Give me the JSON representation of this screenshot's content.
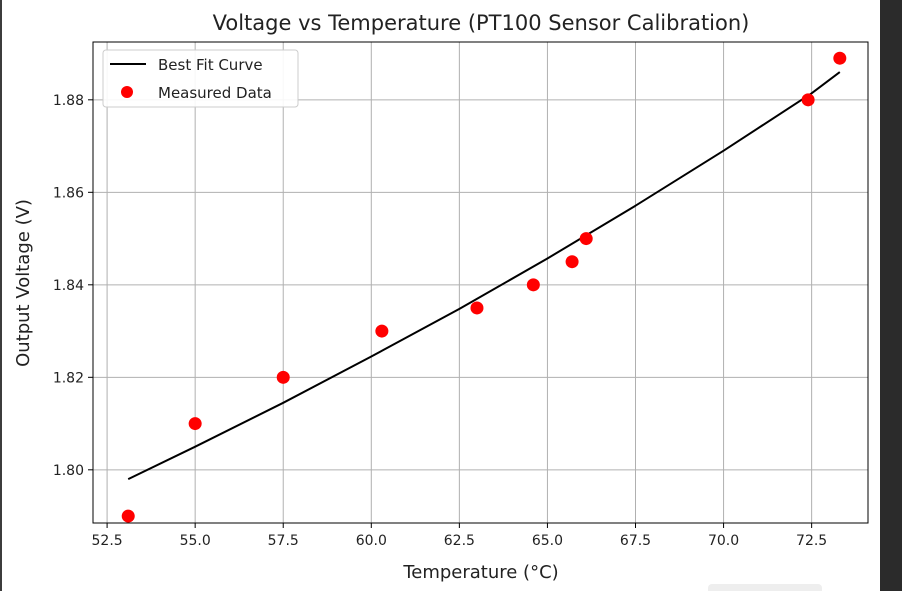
{
  "chart_data": {
    "type": "scatter",
    "title": "Voltage vs Temperature (PT100 Sensor Calibration)",
    "xlabel": "Temperature (°C)",
    "ylabel": "Output Voltage (V)",
    "xlim": [
      52.1,
      74.1
    ],
    "ylim": [
      1.7885,
      1.8925
    ],
    "xticks": [
      52.5,
      55.0,
      57.5,
      60.0,
      62.5,
      65.0,
      67.5,
      70.0,
      72.5
    ],
    "xtick_labels": [
      "52.5",
      "55.0",
      "57.5",
      "60.0",
      "62.5",
      "65.0",
      "67.5",
      "70.0",
      "72.5"
    ],
    "yticks": [
      1.8,
      1.82,
      1.84,
      1.86,
      1.88
    ],
    "ytick_labels": [
      "1.80",
      "1.82",
      "1.84",
      "1.86",
      "1.88"
    ],
    "grid": true,
    "legend_position": "top-left",
    "series": [
      {
        "name": "Best Fit Curve",
        "kind": "line",
        "color": "#000000",
        "x": [
          53.1,
          55.0,
          57.5,
          60.0,
          62.5,
          65.0,
          67.5,
          70.0,
          72.5,
          73.3
        ],
        "y": [
          1.798,
          1.805,
          1.8145,
          1.8245,
          1.8348,
          1.8457,
          1.8571,
          1.869,
          1.8814,
          1.886
        ]
      },
      {
        "name": "Measured Data",
        "kind": "scatter",
        "color": "#ff0000",
        "x": [
          53.1,
          55.0,
          57.5,
          60.3,
          63.0,
          64.6,
          65.7,
          66.1,
          72.4,
          73.3
        ],
        "y": [
          1.79,
          1.81,
          1.82,
          1.83,
          1.835,
          1.84,
          1.845,
          1.85,
          1.88,
          1.889
        ]
      }
    ]
  }
}
